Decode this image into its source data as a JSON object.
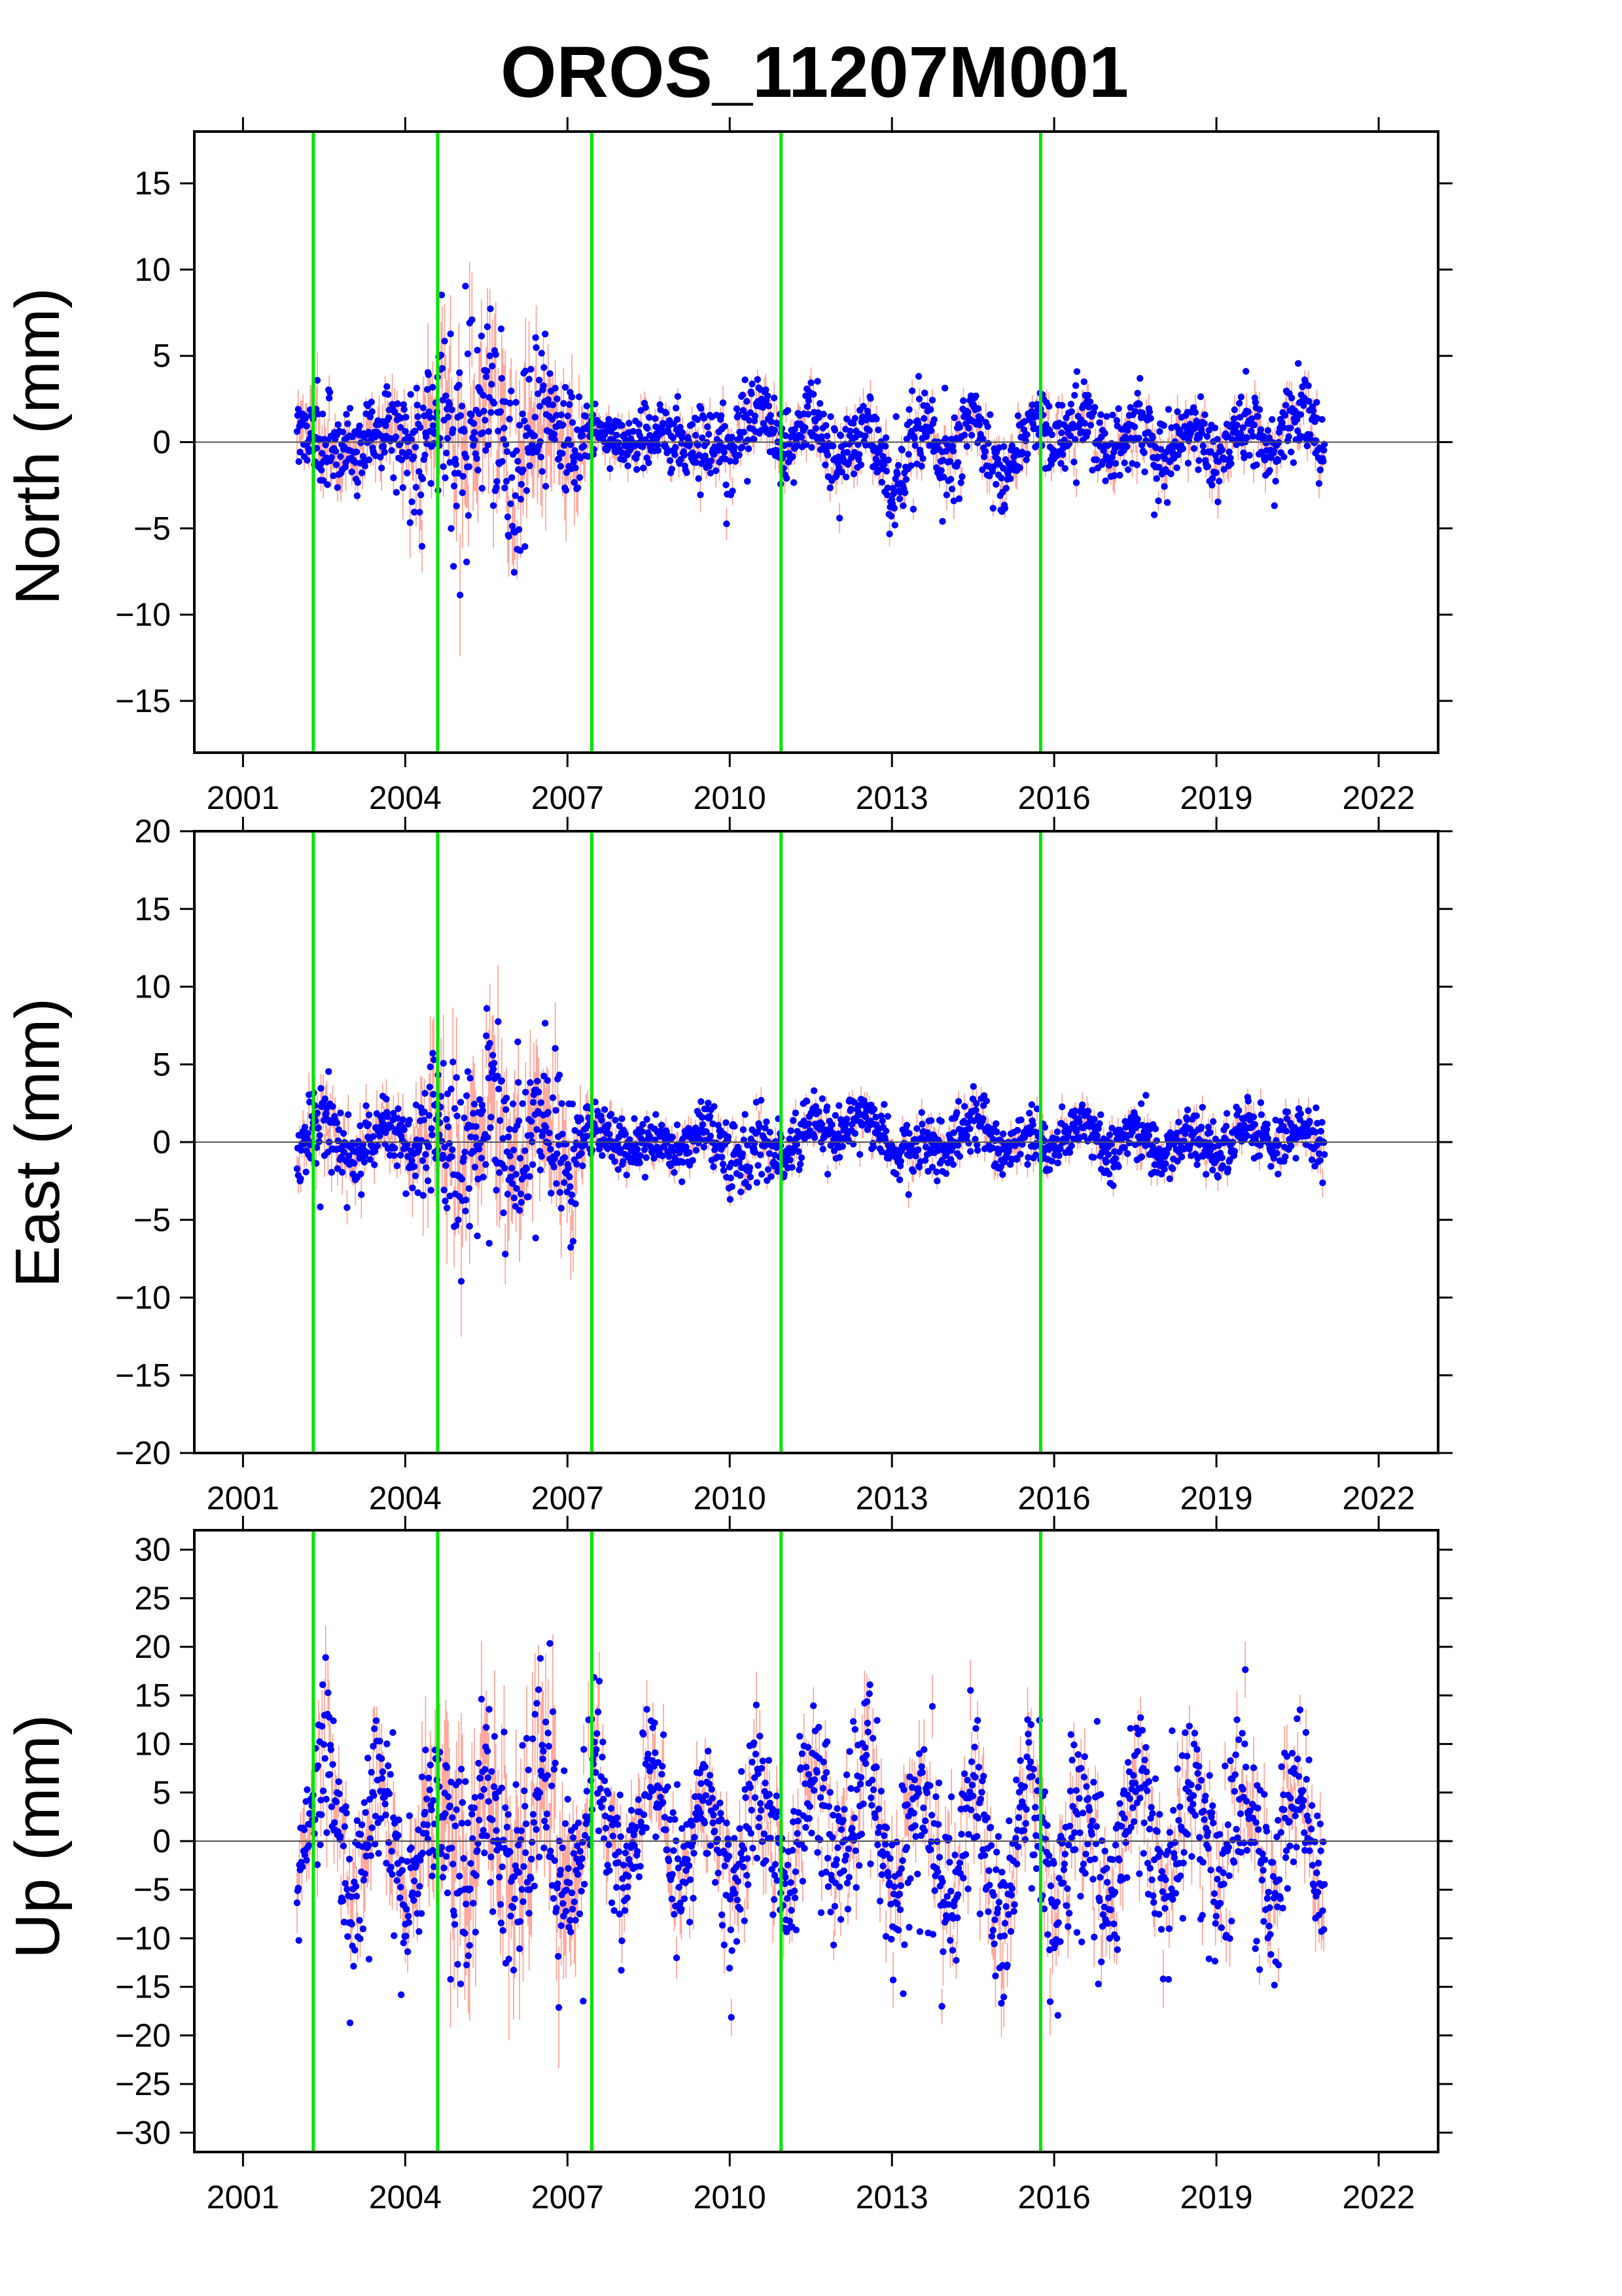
{
  "chart_data": [
    {
      "type": "scatter",
      "title": "OROS_11207M001",
      "ylabel": "North (mm)",
      "xlim": [
        2000.1,
        2023.1
      ],
      "ylim": [
        -18,
        18
      ],
      "xticks": [
        2001,
        2004,
        2007,
        2010,
        2013,
        2016,
        2019,
        2022
      ],
      "yticks": [
        -15,
        -10,
        -5,
        0,
        5,
        10,
        15
      ],
      "grid": false,
      "zero_line": 0,
      "offset_epochs": [
        2002.3,
        2004.6,
        2007.45,
        2010.95,
        2015.75
      ],
      "series": [
        {
          "x": [
            2002.0,
            2002.5,
            2003.0,
            2003.5,
            2004.0,
            2004.5,
            2005.0,
            2005.5,
            2006.0,
            2006.5,
            2007.0,
            2007.5,
            2008.0,
            2008.5,
            2009.0,
            2009.5,
            2010.0,
            2010.5,
            2011.0,
            2011.5,
            2012.0,
            2012.5,
            2013.0,
            2013.5,
            2014.0,
            2014.5,
            2015.0,
            2015.5,
            2016.0,
            2016.5,
            2017.0,
            2017.5,
            2018.0,
            2018.5,
            2019.0,
            2019.5,
            2020.0,
            2020.5,
            2021.0
          ],
          "y": [
            2.0,
            -1.0,
            0.5,
            0.0,
            1.0,
            -0.5,
            1.5,
            1.0,
            0.0,
            0.5,
            1.0,
            0.0,
            0.5,
            -0.5,
            1.0,
            -1.0,
            0.5,
            1.5,
            0.0,
            1.0,
            -0.5,
            0.5,
            -1.5,
            0.5,
            -1.0,
            1.0,
            -1.5,
            0.5,
            1.0,
            0.5,
            0.0,
            0.5,
            -0.5,
            0.5,
            -0.5,
            0.5,
            0.0,
            1.5,
            0.0
          ],
          "amplitude": [
            1.5,
            2.0,
            1.5,
            1.5,
            2.0,
            3.0,
            4.0,
            4.0,
            3.5,
            3.0,
            2.5,
            1.2,
            1.0,
            1.2,
            1.5,
            1.8,
            2.0,
            1.5,
            1.5,
            1.5,
            1.5,
            1.5,
            2.0,
            2.0,
            2.0,
            1.5,
            1.5,
            1.5,
            1.5,
            1.5,
            1.5,
            1.5,
            1.5,
            1.5,
            1.5,
            1.5,
            1.5,
            2.0,
            1.5
          ],
          "sigma": [
            1.2,
            1.5,
            1.2,
            1.2,
            1.4,
            2.5,
            2.8,
            2.8,
            2.6,
            2.4,
            2.2,
            0.8,
            0.7,
            0.7,
            0.7,
            0.8,
            0.8,
            0.8,
            0.8,
            0.8,
            0.8,
            0.8,
            0.8,
            0.8,
            0.8,
            0.8,
            0.8,
            0.8,
            0.8,
            0.8,
            0.8,
            0.8,
            0.8,
            0.8,
            0.8,
            0.8,
            0.8,
            0.8,
            0.8
          ]
        }
      ]
    },
    {
      "type": "scatter",
      "ylabel": "East (mm)",
      "xlim": [
        2000.1,
        2023.1
      ],
      "ylim": [
        -20,
        20
      ],
      "xticks": [
        2001,
        2004,
        2007,
        2010,
        2013,
        2016,
        2019,
        2022
      ],
      "yticks": [
        -20,
        -15,
        -10,
        -5,
        0,
        5,
        10,
        15,
        20
      ],
      "grid": false,
      "zero_line": 0,
      "offset_epochs": [
        2002.3,
        2004.6,
        2007.45,
        2010.95,
        2015.75
      ],
      "series": [
        {
          "x": [
            2002.0,
            2002.5,
            2003.0,
            2003.5,
            2004.0,
            2004.5,
            2005.0,
            2005.5,
            2006.0,
            2006.5,
            2007.0,
            2007.5,
            2008.0,
            2008.5,
            2009.0,
            2009.5,
            2010.0,
            2010.5,
            2011.0,
            2011.5,
            2012.0,
            2012.5,
            2013.0,
            2013.5,
            2014.0,
            2014.5,
            2015.0,
            2015.5,
            2016.0,
            2016.5,
            2017.0,
            2017.5,
            2018.0,
            2018.5,
            2019.0,
            2019.5,
            2020.0,
            2020.5,
            2021.0
          ],
          "y": [
            0.0,
            1.0,
            -0.5,
            0.0,
            0.5,
            0.0,
            0.5,
            0.0,
            0.0,
            0.5,
            0.0,
            0.5,
            0.0,
            -0.5,
            0.0,
            0.5,
            -0.5,
            -1.0,
            -0.5,
            1.0,
            1.0,
            1.5,
            0.0,
            -0.5,
            0.0,
            1.0,
            0.0,
            0.0,
            0.0,
            0.5,
            0.0,
            0.5,
            -0.5,
            0.0,
            0.0,
            0.5,
            0.5,
            0.5,
            0.0
          ],
          "amplitude": [
            1.5,
            2.0,
            1.5,
            1.5,
            1.5,
            3.0,
            4.0,
            4.0,
            3.5,
            3.5,
            3.0,
            1.2,
            1.0,
            1.0,
            1.0,
            1.2,
            1.5,
            1.5,
            1.2,
            1.2,
            1.2,
            1.2,
            1.2,
            1.2,
            1.2,
            1.2,
            1.2,
            1.2,
            1.2,
            1.2,
            1.2,
            1.2,
            1.2,
            1.2,
            1.2,
            1.2,
            1.2,
            1.2,
            1.2
          ],
          "sigma": [
            1.2,
            1.5,
            1.2,
            1.2,
            1.3,
            2.6,
            3.0,
            3.0,
            2.8,
            2.6,
            2.4,
            0.7,
            0.7,
            0.7,
            0.7,
            0.7,
            0.7,
            0.7,
            0.7,
            0.7,
            0.7,
            0.7,
            0.7,
            0.7,
            0.7,
            0.7,
            0.7,
            0.7,
            0.7,
            0.7,
            0.7,
            0.7,
            0.7,
            0.7,
            0.7,
            0.7,
            0.7,
            0.7,
            0.7
          ]
        }
      ]
    },
    {
      "type": "scatter",
      "ylabel": "Up (mm)",
      "xlim": [
        2000.1,
        2023.1
      ],
      "ylim": [
        -32,
        32
      ],
      "xticks": [
        2001,
        2004,
        2007,
        2010,
        2013,
        2016,
        2019,
        2022
      ],
      "yticks": [
        -30,
        -25,
        -20,
        -15,
        -10,
        -5,
        0,
        5,
        10,
        15,
        20,
        25,
        30
      ],
      "grid": false,
      "zero_line": 0,
      "offset_epochs": [
        2002.3,
        2004.6,
        2007.45,
        2010.95,
        2015.75
      ],
      "series": [
        {
          "x": [
            2002.0,
            2002.5,
            2003.0,
            2003.5,
            2004.0,
            2004.5,
            2005.0,
            2005.5,
            2006.0,
            2006.5,
            2007.0,
            2007.5,
            2008.0,
            2008.5,
            2009.0,
            2009.5,
            2010.0,
            2010.5,
            2011.0,
            2011.5,
            2012.0,
            2012.5,
            2013.0,
            2013.5,
            2014.0,
            2014.5,
            2015.0,
            2015.5,
            2016.0,
            2016.5,
            2017.0,
            2017.5,
            2018.0,
            2018.5,
            2019.0,
            2019.5,
            2020.0,
            2020.5,
            2021.0
          ],
          "y": [
            -3.0,
            8.0,
            -5.0,
            5.0,
            -5.0,
            3.0,
            -2.0,
            3.0,
            -2.0,
            5.0,
            -3.0,
            6.0,
            -3.0,
            4.0,
            -2.0,
            3.0,
            -4.0,
            3.0,
            -3.0,
            6.0,
            0.0,
            7.0,
            -3.0,
            3.0,
            -4.0,
            2.0,
            -6.0,
            4.0,
            -5.0,
            3.0,
            -5.0,
            6.0,
            -3.0,
            4.0,
            -3.0,
            4.0,
            -4.0,
            5.0,
            -4.0
          ],
          "amplitude": [
            4.0,
            6.0,
            6.0,
            6.0,
            6.0,
            6.0,
            8.0,
            8.0,
            8.0,
            8.0,
            8.0,
            6.0,
            5.0,
            5.0,
            5.0,
            5.0,
            5.0,
            5.0,
            5.0,
            6.0,
            6.0,
            6.0,
            6.0,
            6.0,
            6.0,
            6.0,
            6.0,
            6.0,
            6.0,
            6.0,
            6.0,
            6.0,
            6.0,
            6.0,
            6.0,
            6.0,
            6.0,
            6.0,
            5.0
          ],
          "sigma": [
            2.5,
            3.0,
            3.0,
            3.0,
            3.0,
            5.0,
            6.0,
            6.0,
            6.0,
            6.0,
            5.5,
            2.5,
            2.5,
            2.5,
            2.5,
            2.5,
            2.5,
            2.5,
            2.5,
            2.5,
            2.5,
            2.5,
            2.5,
            2.5,
            2.5,
            2.5,
            2.5,
            2.5,
            2.5,
            2.5,
            2.5,
            2.5,
            2.5,
            2.5,
            2.5,
            2.5,
            2.5,
            2.5,
            2.5
          ]
        }
      ]
    }
  ],
  "style": {
    "point_color": "#0000ff",
    "errorbar_color": "#ff4d33",
    "offset_line_color": "#00e600",
    "zero_line_color": "#555555",
    "frame_color": "#000000",
    "background": "#ffffff"
  }
}
